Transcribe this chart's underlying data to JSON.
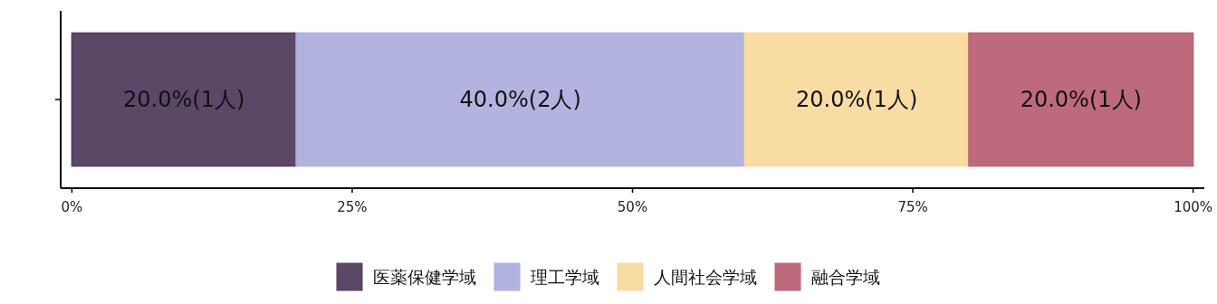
{
  "chart_data": {
    "type": "bar",
    "orientation": "horizontal",
    "stacked": true,
    "categories": [
      null
    ],
    "series": [
      {
        "name": "医薬保健学域",
        "color": "#523e5f",
        "values": [
          20
        ],
        "value_labels": [
          "20.0%(1人)"
        ]
      },
      {
        "name": "理工学域",
        "color": "#aeb0dd",
        "values": [
          40
        ],
        "value_labels": [
          "40.0%(2人)"
        ]
      },
      {
        "name": "人間社会学域",
        "color": "#f9da9e",
        "values": [
          20
        ],
        "value_labels": [
          "20.0%(1人)"
        ]
      },
      {
        "name": "融合学域",
        "color": "#b96275",
        "values": [
          20
        ],
        "value_labels": [
          "20.0%(1人)"
        ]
      }
    ],
    "xlim": [
      -1,
      101
    ],
    "xticks": [
      {
        "value": 0,
        "label": "0%"
      },
      {
        "value": 25,
        "label": "25%"
      },
      {
        "value": 50,
        "label": "50%"
      },
      {
        "value": 75,
        "label": "75%"
      },
      {
        "value": 100,
        "label": "100%"
      }
    ],
    "tick_labels": "x",
    "grid": false,
    "legend": "bottom"
  }
}
